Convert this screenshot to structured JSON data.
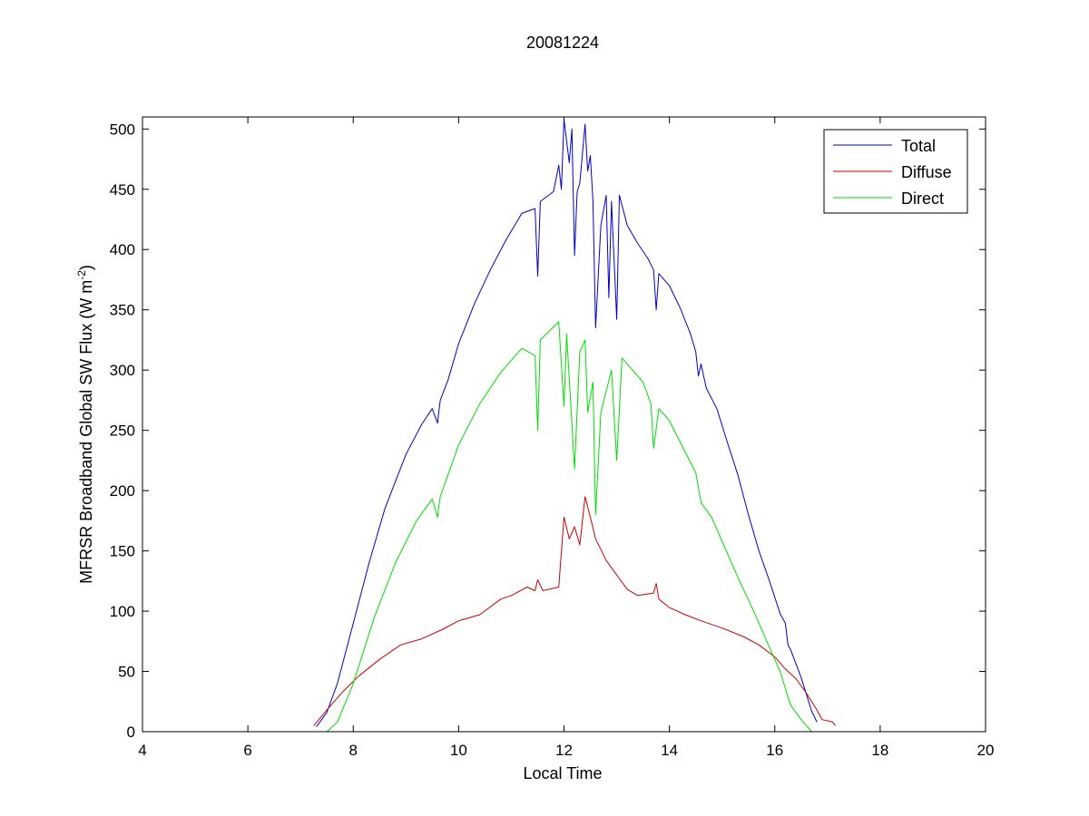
{
  "chart_data": {
    "type": "line",
    "title": "20081224",
    "xlabel": "Local Time",
    "ylabel_main": "MFRSR Broadband Global SW Flux (W m",
    "ylabel_sup": "-2",
    "ylabel_close": ")",
    "xlim": [
      4,
      20
    ],
    "ylim": [
      0,
      510
    ],
    "xticks": [
      4,
      6,
      8,
      10,
      12,
      14,
      16,
      18,
      20
    ],
    "yticks": [
      0,
      50,
      100,
      150,
      200,
      250,
      300,
      350,
      400,
      450,
      500
    ],
    "grid": false,
    "legend_position": "top-right",
    "series": [
      {
        "name": "Total",
        "color": "#0000cc",
        "points": [
          [
            7.3,
            4
          ],
          [
            7.5,
            16
          ],
          [
            7.7,
            40
          ],
          [
            8.0,
            90
          ],
          [
            8.3,
            140
          ],
          [
            8.6,
            185
          ],
          [
            9.0,
            230
          ],
          [
            9.3,
            255
          ],
          [
            9.5,
            268
          ],
          [
            9.6,
            256
          ],
          [
            9.65,
            275
          ],
          [
            9.8,
            292
          ],
          [
            10.0,
            322
          ],
          [
            10.3,
            355
          ],
          [
            10.6,
            383
          ],
          [
            10.9,
            408
          ],
          [
            11.2,
            430
          ],
          [
            11.45,
            434
          ],
          [
            11.5,
            378
          ],
          [
            11.55,
            440
          ],
          [
            11.8,
            448
          ],
          [
            11.9,
            470
          ],
          [
            11.95,
            450
          ],
          [
            12.0,
            508
          ],
          [
            12.1,
            472
          ],
          [
            12.15,
            500
          ],
          [
            12.2,
            395
          ],
          [
            12.25,
            448
          ],
          [
            12.3,
            455
          ],
          [
            12.4,
            504
          ],
          [
            12.45,
            465
          ],
          [
            12.5,
            478
          ],
          [
            12.55,
            440
          ],
          [
            12.6,
            335
          ],
          [
            12.7,
            420
          ],
          [
            12.8,
            445
          ],
          [
            12.85,
            360
          ],
          [
            12.9,
            440
          ],
          [
            13.0,
            342
          ],
          [
            13.05,
            445
          ],
          [
            13.2,
            420
          ],
          [
            13.4,
            405
          ],
          [
            13.6,
            392
          ],
          [
            13.7,
            383
          ],
          [
            13.75,
            350
          ],
          [
            13.8,
            380
          ],
          [
            14.0,
            370
          ],
          [
            14.2,
            352
          ],
          [
            14.4,
            330
          ],
          [
            14.5,
            315
          ],
          [
            14.55,
            295
          ],
          [
            14.6,
            305
          ],
          [
            14.7,
            285
          ],
          [
            14.9,
            268
          ],
          [
            15.1,
            240
          ],
          [
            15.3,
            213
          ],
          [
            15.5,
            180
          ],
          [
            15.7,
            150
          ],
          [
            15.9,
            125
          ],
          [
            16.1,
            98
          ],
          [
            16.2,
            90
          ],
          [
            16.25,
            72
          ],
          [
            16.3,
            68
          ],
          [
            16.5,
            45
          ],
          [
            16.7,
            17
          ],
          [
            16.8,
            8
          ]
        ]
      },
      {
        "name": "Diffuse",
        "color": "#cc0000",
        "points": [
          [
            7.25,
            5
          ],
          [
            7.5,
            18
          ],
          [
            7.8,
            33
          ],
          [
            8.1,
            46
          ],
          [
            8.5,
            60
          ],
          [
            8.9,
            72
          ],
          [
            9.3,
            77
          ],
          [
            9.7,
            85
          ],
          [
            10.0,
            92
          ],
          [
            10.4,
            97
          ],
          [
            10.8,
            110
          ],
          [
            11.0,
            113
          ],
          [
            11.3,
            120
          ],
          [
            11.45,
            117
          ],
          [
            11.5,
            126
          ],
          [
            11.6,
            117
          ],
          [
            11.9,
            120
          ],
          [
            12.0,
            178
          ],
          [
            12.1,
            160
          ],
          [
            12.2,
            170
          ],
          [
            12.3,
            155
          ],
          [
            12.4,
            195
          ],
          [
            12.5,
            178
          ],
          [
            12.6,
            160
          ],
          [
            12.8,
            142
          ],
          [
            13.0,
            130
          ],
          [
            13.2,
            118
          ],
          [
            13.4,
            113
          ],
          [
            13.7,
            115
          ],
          [
            13.75,
            123
          ],
          [
            13.8,
            110
          ],
          [
            14.0,
            103
          ],
          [
            14.3,
            97
          ],
          [
            14.6,
            92
          ],
          [
            15.0,
            86
          ],
          [
            15.4,
            79
          ],
          [
            15.7,
            72
          ],
          [
            16.0,
            62
          ],
          [
            16.2,
            52
          ],
          [
            16.4,
            44
          ],
          [
            16.6,
            32
          ],
          [
            16.8,
            18
          ],
          [
            16.9,
            10
          ],
          [
            17.1,
            8
          ],
          [
            17.15,
            5
          ]
        ]
      },
      {
        "name": "Direct",
        "color": "#00dd00",
        "points": [
          [
            7.5,
            0
          ],
          [
            7.7,
            8
          ],
          [
            8.0,
            40
          ],
          [
            8.4,
            95
          ],
          [
            8.8,
            140
          ],
          [
            9.2,
            175
          ],
          [
            9.5,
            193
          ],
          [
            9.6,
            178
          ],
          [
            9.65,
            195
          ],
          [
            10.0,
            238
          ],
          [
            10.4,
            272
          ],
          [
            10.8,
            298
          ],
          [
            11.2,
            318
          ],
          [
            11.45,
            312
          ],
          [
            11.5,
            250
          ],
          [
            11.55,
            325
          ],
          [
            11.9,
            340
          ],
          [
            12.0,
            270
          ],
          [
            12.05,
            330
          ],
          [
            12.2,
            218
          ],
          [
            12.3,
            315
          ],
          [
            12.4,
            325
          ],
          [
            12.45,
            265
          ],
          [
            12.55,
            290
          ],
          [
            12.6,
            180
          ],
          [
            12.7,
            265
          ],
          [
            12.9,
            300
          ],
          [
            13.0,
            225
          ],
          [
            13.1,
            310
          ],
          [
            13.3,
            300
          ],
          [
            13.5,
            290
          ],
          [
            13.65,
            272
          ],
          [
            13.7,
            235
          ],
          [
            13.8,
            268
          ],
          [
            14.0,
            258
          ],
          [
            14.3,
            232
          ],
          [
            14.5,
            215
          ],
          [
            14.6,
            190
          ],
          [
            14.8,
            178
          ],
          [
            15.0,
            158
          ],
          [
            15.3,
            128
          ],
          [
            15.6,
            100
          ],
          [
            15.9,
            70
          ],
          [
            16.1,
            50
          ],
          [
            16.3,
            22
          ],
          [
            16.5,
            10
          ],
          [
            16.7,
            0
          ],
          [
            16.9,
            0
          ]
        ]
      }
    ]
  }
}
